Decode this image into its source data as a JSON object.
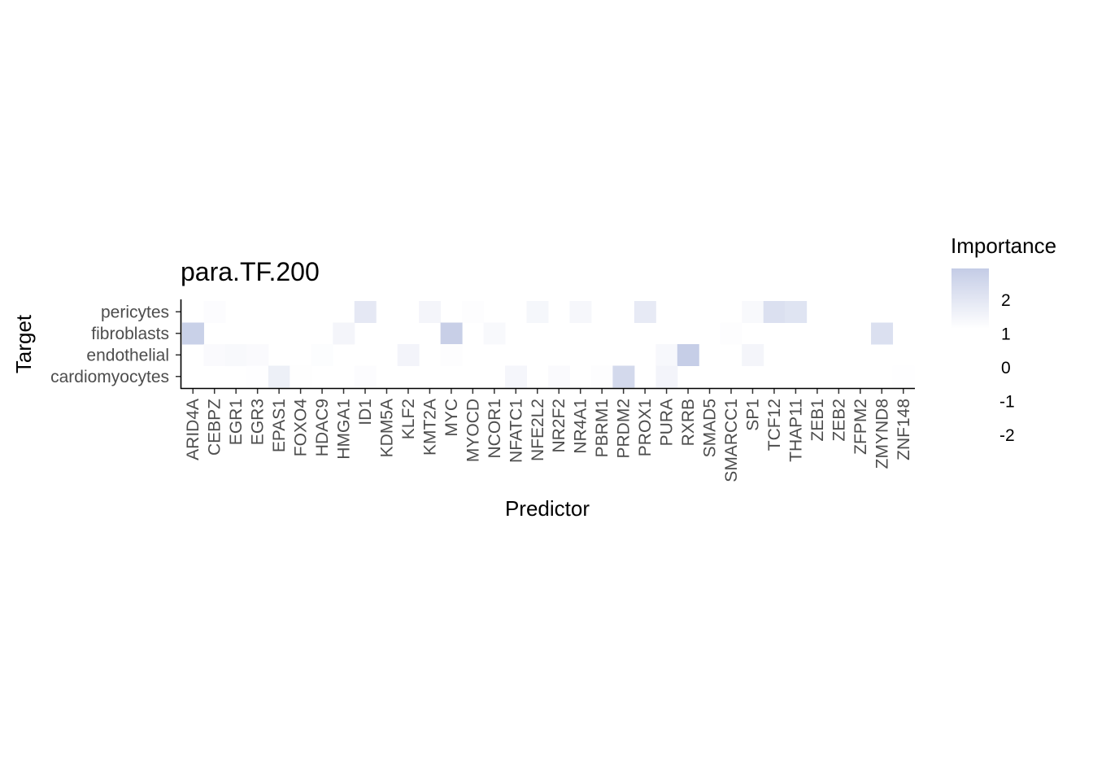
{
  "chart_data": {
    "type": "heatmap",
    "title": "para.TF.200",
    "xlabel": "Predictor",
    "ylabel": "Target",
    "x_categories": [
      "ARID4A",
      "CEBPZ",
      "EGR1",
      "EGR3",
      "EPAS1",
      "FOXO4",
      "HDAC9",
      "HMGA1",
      "ID1",
      "KDM5A",
      "KLF2",
      "KMT2A",
      "MYC",
      "MYOCD",
      "NCOR1",
      "NFATC1",
      "NFE2L2",
      "NR2F2",
      "NR4A1",
      "PBRM1",
      "PRDM2",
      "PROX1",
      "PURA",
      "RXRB",
      "SMAD5",
      "SMARCC1",
      "SP1",
      "TCF12",
      "THAP11",
      "ZEB1",
      "ZEB2",
      "ZFPM2",
      "ZMYND8",
      "ZNF148"
    ],
    "y_categories": [
      "pericytes",
      "fibroblasts",
      "endothelial",
      "cardiomyocytes"
    ],
    "values": [
      [
        null,
        -1.5,
        null,
        null,
        null,
        null,
        null,
        null,
        0.8,
        null,
        null,
        -0.5,
        null,
        -1.8,
        null,
        null,
        -0.7,
        null,
        -0.8,
        null,
        null,
        0.6,
        null,
        null,
        null,
        null,
        -1.0,
        1.5,
        1.2,
        null,
        null,
        null,
        null,
        null
      ],
      [
        2.6,
        null,
        null,
        null,
        null,
        null,
        null,
        -0.5,
        null,
        null,
        null,
        null,
        2.7,
        null,
        -1.0,
        null,
        null,
        null,
        null,
        null,
        null,
        null,
        null,
        null,
        null,
        -1.8,
        null,
        null,
        null,
        null,
        null,
        -2.3,
        1.5,
        null
      ],
      [
        null,
        -1.2,
        -1.0,
        -1.2,
        null,
        null,
        -1.6,
        null,
        null,
        null,
        -0.4,
        null,
        -1.8,
        null,
        null,
        null,
        null,
        null,
        null,
        null,
        null,
        null,
        -0.9,
        2.8,
        null,
        null,
        -0.5,
        null,
        null,
        null,
        -2.2,
        null,
        null,
        null
      ],
      [
        null,
        null,
        null,
        -2.0,
        0.1,
        -1.9,
        null,
        null,
        -1.5,
        null,
        null,
        null,
        null,
        null,
        null,
        -0.6,
        null,
        -1.2,
        null,
        -1.7,
        2.0,
        null,
        -0.4,
        null,
        null,
        null,
        null,
        null,
        null,
        null,
        null,
        null,
        null,
        -2.0
      ]
    ],
    "legend": {
      "title": "Importance",
      "breaks": [
        2,
        1,
        0,
        -1,
        -2
      ],
      "range": [
        -2.4,
        2.9
      ],
      "colors": {
        "low": "#ffffff",
        "high": "#c4cce6"
      },
      "position": "right"
    },
    "grid": false
  }
}
